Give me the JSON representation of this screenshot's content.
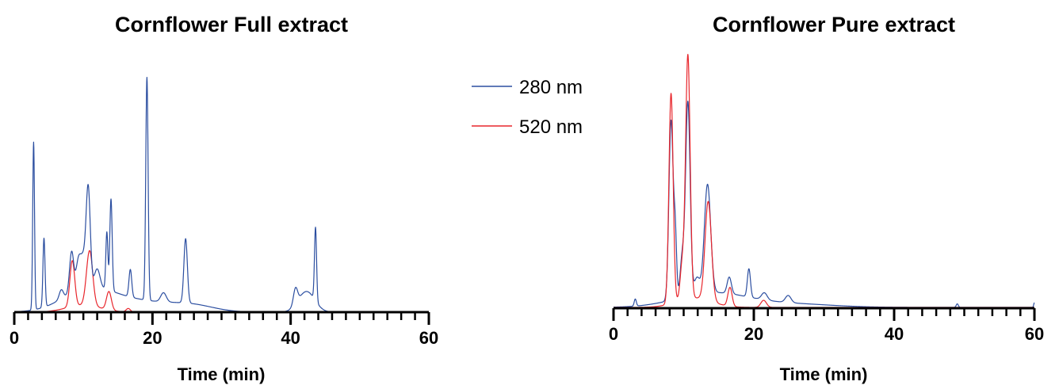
{
  "colors": {
    "series_280": "#2b4ea0",
    "series_520": "#e8262c",
    "axis": "#000000"
  },
  "legend": [
    {
      "label": "280 nm",
      "color": "#2b4ea0"
    },
    {
      "label": "520 nm",
      "color": "#e8262c"
    }
  ],
  "chart_data": [
    {
      "type": "line",
      "title": "Cornflower Full extract",
      "xlabel": "Time (min)",
      "ylabel": "",
      "xlim": [
        0,
        60
      ],
      "x_ticks": [
        0,
        20,
        40,
        60
      ],
      "y_axis_shown": false,
      "y_scale": "relative absorbance (no scale shown)",
      "ylim": [
        0,
        100
      ],
      "series": [
        {
          "name": "280 nm",
          "color": "#2b4ea0",
          "peaks": [
            {
              "x": 2.8,
              "h": 73,
              "w": 0.13
            },
            {
              "x": 4.3,
              "h": 30,
              "w": 0.15
            },
            {
              "x": 6.8,
              "h": 4,
              "w": 0.3
            },
            {
              "x": 8.3,
              "h": 18,
              "w": 0.3
            },
            {
              "x": 9.3,
              "h": 13,
              "w": 0.35
            },
            {
              "x": 10.0,
              "h": 12,
              "w": 0.35
            },
            {
              "x": 10.7,
              "h": 43,
              "w": 0.3
            },
            {
              "x": 12.0,
              "h": 8,
              "w": 0.4
            },
            {
              "x": 13.4,
              "h": 25,
              "w": 0.15
            },
            {
              "x": 14.0,
              "h": 40,
              "w": 0.17
            },
            {
              "x": 16.8,
              "h": 12,
              "w": 0.2
            },
            {
              "x": 19.2,
              "h": 97,
              "w": 0.17
            },
            {
              "x": 21.6,
              "h": 4,
              "w": 0.4
            },
            {
              "x": 24.8,
              "h": 28,
              "w": 0.25
            },
            {
              "x": 40.7,
              "h": 7,
              "w": 0.3
            },
            {
              "x": 42.3,
              "h": 9,
              "w": 1.2
            },
            {
              "x": 43.6,
              "h": 32,
              "w": 0.15
            }
          ],
          "broad": [
            {
              "x": 10.5,
              "h": 8,
              "w": 3.5
            },
            {
              "x": 17.0,
              "h": 5,
              "w": 6.0
            },
            {
              "x": 26.0,
              "h": 2,
              "w": 3.0
            }
          ]
        },
        {
          "name": "520 nm",
          "color": "#e8262c",
          "peaks": [
            {
              "x": 8.4,
              "h": 20,
              "w": 0.35
            },
            {
              "x": 10.9,
              "h": 24,
              "w": 0.45
            },
            {
              "x": 13.7,
              "h": 8,
              "w": 0.35
            },
            {
              "x": 16.5,
              "h": 1.5,
              "w": 0.3
            }
          ],
          "broad": [
            {
              "x": 10.0,
              "h": 3,
              "w": 2.5
            }
          ]
        }
      ]
    },
    {
      "type": "line",
      "title": "Cornflower Pure extract",
      "xlabel": "Time (min)",
      "ylabel": "",
      "xlim": [
        0,
        60
      ],
      "x_ticks": [
        0,
        20,
        40,
        60
      ],
      "y_axis_shown": false,
      "y_scale": "relative absorbance (no scale shown)",
      "ylim": [
        0,
        100
      ],
      "series": [
        {
          "name": "280 nm",
          "color": "#2b4ea0",
          "peaks": [
            {
              "x": 3.1,
              "h": 3,
              "w": 0.15
            },
            {
              "x": 8.2,
              "h": 76,
              "w": 0.3
            },
            {
              "x": 8.8,
              "h": 25,
              "w": 0.2
            },
            {
              "x": 9.8,
              "h": 17,
              "w": 0.3
            },
            {
              "x": 10.6,
              "h": 82,
              "w": 0.32
            },
            {
              "x": 11.9,
              "h": 7,
              "w": 0.4
            },
            {
              "x": 13.4,
              "h": 46,
              "w": 0.45
            },
            {
              "x": 16.5,
              "h": 7,
              "w": 0.3
            },
            {
              "x": 19.3,
              "h": 12,
              "w": 0.22
            },
            {
              "x": 21.5,
              "h": 3,
              "w": 0.4
            },
            {
              "x": 24.9,
              "h": 3,
              "w": 0.4
            },
            {
              "x": 49.0,
              "h": 1.5,
              "w": 0.15
            },
            {
              "x": 60.0,
              "h": 2,
              "w": 0.1
            }
          ],
          "broad": [
            {
              "x": 14.0,
              "h": 6,
              "w": 5.0
            },
            {
              "x": 25.0,
              "h": 1.5,
              "w": 6.0
            }
          ]
        },
        {
          "name": "520 nm",
          "color": "#e8262c",
          "peaks": [
            {
              "x": 8.2,
              "h": 89,
              "w": 0.3
            },
            {
              "x": 9.8,
              "h": 15,
              "w": 0.3
            },
            {
              "x": 10.6,
              "h": 103,
              "w": 0.32
            },
            {
              "x": 13.5,
              "h": 42,
              "w": 0.45
            },
            {
              "x": 16.6,
              "h": 8,
              "w": 0.3
            },
            {
              "x": 21.4,
              "h": 3,
              "w": 0.4
            }
          ],
          "broad": [
            {
              "x": 11.5,
              "h": 4,
              "w": 2.5
            }
          ]
        }
      ]
    }
  ]
}
